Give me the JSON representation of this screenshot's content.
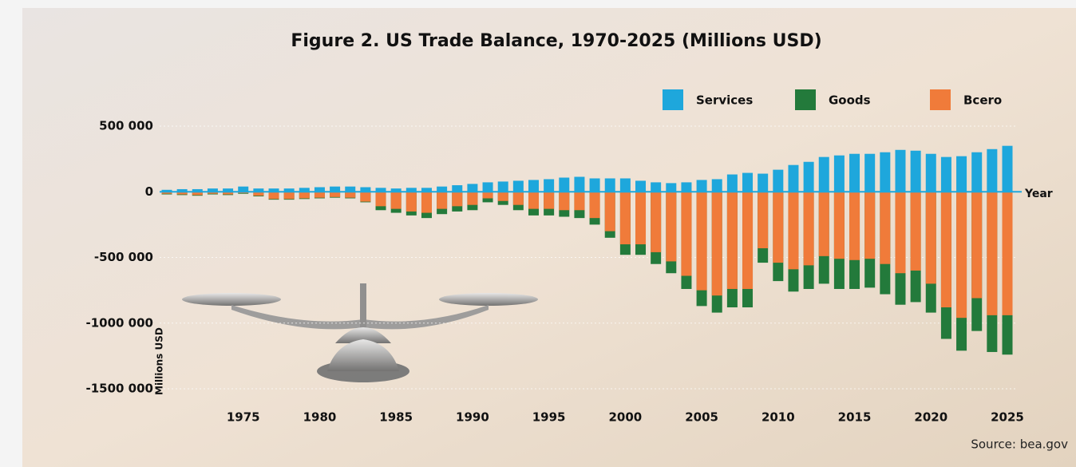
{
  "chart_data": {
    "type": "bar",
    "title": "Figure 2. US Trade Balance, 1970-2025 (Millions USD)",
    "x_label": "Year",
    "y_label": "Millions USD",
    "source": "Source: bea.gov",
    "categories": [
      null,
      null,
      null,
      null,
      null,
      1975,
      null,
      null,
      null,
      null,
      1980,
      null,
      null,
      null,
      null,
      1985,
      null,
      null,
      null,
      null,
      1990,
      null,
      null,
      null,
      null,
      1995,
      null,
      null,
      null,
      null,
      2000,
      null,
      null,
      null,
      null,
      2005,
      null,
      null,
      null,
      null,
      2010,
      null,
      null,
      null,
      null,
      2015,
      null,
      null,
      null,
      null,
      2020,
      null,
      null,
      null,
      null,
      2025
    ],
    "series": [
      {
        "name": "Services",
        "color": "#1ea7dc",
        "values": [
          15000,
          20000,
          20000,
          25000,
          25000,
          40000,
          25000,
          25000,
          25000,
          30000,
          35000,
          40000,
          40000,
          35000,
          30000,
          25000,
          30000,
          30000,
          40000,
          50000,
          60000,
          72000,
          78000,
          84000,
          90000,
          96000,
          108000,
          114000,
          102000,
          102000,
          102000,
          84000,
          72000,
          66000,
          72000,
          90000,
          96000,
          132000,
          144000,
          138000,
          168000,
          204000,
          228000,
          265000,
          277000,
          289000,
          289000,
          301000,
          319000,
          313000,
          289000,
          265000,
          271000,
          301000,
          325000,
          350000
        ]
      },
      {
        "name": "Goods",
        "color": "#237a3b",
        "values": [
          -20000,
          -25000,
          -30000,
          -20000,
          -25000,
          -15000,
          -35000,
          -60000,
          -60000,
          -55000,
          -50000,
          -45000,
          -50000,
          -80000,
          -140000,
          -160000,
          -180000,
          -200000,
          -170000,
          -150000,
          -140000,
          -80000,
          -100000,
          -140000,
          -180000,
          -180000,
          -190000,
          -200000,
          -250000,
          -350000,
          -480000,
          -480000,
          -550000,
          -620000,
          -740000,
          -870000,
          -920000,
          -880000,
          -880000,
          -540000,
          -680000,
          -760000,
          -740000,
          -700000,
          -740000,
          -740000,
          -730000,
          -780000,
          -860000,
          -840000,
          -920000,
          -1120000,
          -1210000,
          -1060000,
          -1220000,
          -1240000
        ]
      },
      {
        "name": "Bcero",
        "color": "#f07b3a",
        "values": [
          -15000,
          -20000,
          -25000,
          -15000,
          -20000,
          -10000,
          -30000,
          -55000,
          -55000,
          -50000,
          -45000,
          -40000,
          -45000,
          -75000,
          -110000,
          -130000,
          -150000,
          -160000,
          -130000,
          -110000,
          -100000,
          -50000,
          -70000,
          -100000,
          -130000,
          -130000,
          -140000,
          -140000,
          -200000,
          -300000,
          -400000,
          -400000,
          -460000,
          -530000,
          -640000,
          -750000,
          -790000,
          -740000,
          -740000,
          -430000,
          -540000,
          -590000,
          -560000,
          -490000,
          -510000,
          -520000,
          -510000,
          -550000,
          -620000,
          -600000,
          -700000,
          -880000,
          -960000,
          -810000,
          -940000,
          -940000
        ]
      }
    ],
    "ylim": [
      -1500000,
      500000
    ],
    "yticks": [
      {
        "value": 500000,
        "label": "500 000"
      },
      0,
      {
        "value": -500000,
        "label": "-500 000"
      },
      {
        "value": -1000000,
        "label": "-1000 000"
      },
      {
        "value": -1500000,
        "label": "-1500 000"
      }
    ],
    "grid": true
  }
}
